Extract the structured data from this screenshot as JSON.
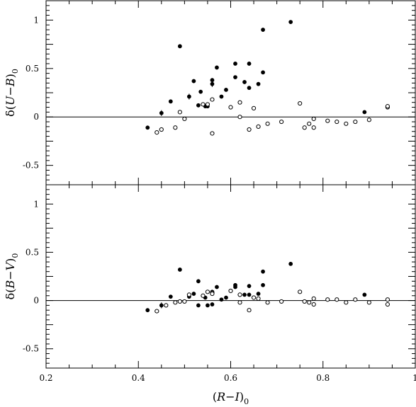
{
  "chart_data": [
    {
      "type": "scatter",
      "panel": "top",
      "ylabel_tspans": [
        "δ(",
        "U",
        "−",
        "B",
        ")",
        "0"
      ],
      "xlabel_tspans": [
        "(",
        "R",
        "−",
        "I",
        ")",
        "0"
      ],
      "xlim": [
        0.2,
        1.0
      ],
      "ylim": [
        -0.7,
        1.2
      ],
      "xticks": [
        0.2,
        0.4,
        0.6,
        0.8,
        1.0
      ],
      "xtick_labels": [
        "0.2",
        "0.4",
        "0.6",
        "0.8",
        "1"
      ],
      "yticks": [
        -0.5,
        0,
        0.5,
        1
      ],
      "ytick_labels": [
        "-0.5",
        "0",
        "0.5",
        "1"
      ],
      "zero_line": 0,
      "series": [
        {
          "marker": "filled-circle",
          "points": [
            [
              0.42,
              -0.11
            ],
            [
              0.45,
              0.04
            ],
            [
              0.47,
              0.16
            ],
            [
              0.49,
              0.73
            ],
            [
              0.51,
              0.21
            ],
            [
              0.52,
              0.37
            ],
            [
              0.53,
              0.12
            ],
            [
              0.535,
              0.26
            ],
            [
              0.545,
              0.11
            ],
            [
              0.55,
              0.11
            ],
            [
              0.56,
              0.38
            ],
            [
              0.56,
              0.34
            ],
            [
              0.57,
              0.51
            ],
            [
              0.58,
              0.21
            ],
            [
              0.59,
              0.28
            ],
            [
              0.61,
              0.55
            ],
            [
              0.61,
              0.41
            ],
            [
              0.63,
              0.36
            ],
            [
              0.64,
              0.55
            ],
            [
              0.64,
              0.3
            ],
            [
              0.66,
              0.34
            ],
            [
              0.67,
              0.46
            ],
            [
              0.67,
              0.9
            ],
            [
              0.73,
              0.98
            ],
            [
              0.89,
              0.05
            ]
          ],
          "errorbars": [
            [
              0.45,
              0.04,
              0.03
            ],
            [
              0.51,
              0.21,
              0.03
            ],
            [
              0.53,
              0.12,
              0.02
            ],
            [
              0.56,
              0.34,
              0.03
            ],
            [
              0.64,
              0.55,
              0.02
            ]
          ]
        },
        {
          "marker": "open-circle",
          "points": [
            [
              0.44,
              -0.16
            ],
            [
              0.45,
              -0.13
            ],
            [
              0.48,
              -0.11
            ],
            [
              0.49,
              0.05
            ],
            [
              0.5,
              -0.02
            ],
            [
              0.54,
              0.13
            ],
            [
              0.55,
              0.13
            ],
            [
              0.56,
              -0.17
            ],
            [
              0.56,
              0.18
            ],
            [
              0.6,
              0.1
            ],
            [
              0.62,
              0.15
            ],
            [
              0.62,
              0.0
            ],
            [
              0.64,
              -0.13
            ],
            [
              0.65,
              0.09
            ],
            [
              0.66,
              -0.1
            ],
            [
              0.68,
              -0.07
            ],
            [
              0.71,
              -0.05
            ],
            [
              0.75,
              0.14
            ],
            [
              0.76,
              -0.11
            ],
            [
              0.77,
              -0.07
            ],
            [
              0.78,
              -0.11
            ],
            [
              0.78,
              -0.02
            ],
            [
              0.81,
              -0.04
            ],
            [
              0.83,
              -0.05
            ],
            [
              0.85,
              -0.07
            ],
            [
              0.87,
              -0.05
            ],
            [
              0.9,
              -0.03
            ],
            [
              0.94,
              0.1
            ],
            [
              0.94,
              0.11
            ]
          ]
        }
      ]
    },
    {
      "type": "scatter",
      "panel": "bottom",
      "ylabel_tspans": [
        "δ(",
        "B",
        "−",
        "V",
        ")",
        "0"
      ],
      "xlabel_tspans": [
        "(",
        "R",
        "−",
        "I",
        ")",
        "0"
      ],
      "xlim": [
        0.2,
        1.0
      ],
      "ylim": [
        -0.7,
        1.2
      ],
      "xticks": [
        0.2,
        0.4,
        0.6,
        0.8,
        1.0
      ],
      "xtick_labels": [
        "0.2",
        "0.4",
        "0.6",
        "0.8",
        "1"
      ],
      "yticks": [
        -0.5,
        0,
        0.5,
        1
      ],
      "ytick_labels": [
        "-0.5",
        "0",
        "0.5",
        "1"
      ],
      "zero_line": 0,
      "series": [
        {
          "marker": "filled-circle",
          "points": [
            [
              0.42,
              -0.1
            ],
            [
              0.45,
              -0.05
            ],
            [
              0.47,
              0.04
            ],
            [
              0.49,
              0.32
            ],
            [
              0.51,
              0.04
            ],
            [
              0.52,
              0.07
            ],
            [
              0.53,
              0.2
            ],
            [
              0.53,
              -0.05
            ],
            [
              0.545,
              0.03
            ],
            [
              0.55,
              -0.05
            ],
            [
              0.56,
              0.09
            ],
            [
              0.56,
              -0.04
            ],
            [
              0.57,
              0.14
            ],
            [
              0.58,
              0.01
            ],
            [
              0.59,
              0.03
            ],
            [
              0.61,
              0.16
            ],
            [
              0.61,
              0.14
            ],
            [
              0.63,
              0.06
            ],
            [
              0.64,
              0.15
            ],
            [
              0.64,
              0.06
            ],
            [
              0.66,
              0.07
            ],
            [
              0.67,
              0.3
            ],
            [
              0.67,
              0.16
            ],
            [
              0.73,
              0.38
            ],
            [
              0.89,
              0.06
            ]
          ],
          "errorbars": [
            [
              0.45,
              -0.05,
              0.03
            ],
            [
              0.51,
              0.04,
              0.02
            ],
            [
              0.56,
              0.09,
              0.02
            ],
            [
              0.64,
              0.15,
              0.02
            ]
          ]
        },
        {
          "marker": "open-circle",
          "points": [
            [
              0.44,
              -0.11
            ],
            [
              0.46,
              -0.05
            ],
            [
              0.48,
              -0.02
            ],
            [
              0.49,
              -0.01
            ],
            [
              0.5,
              -0.01
            ],
            [
              0.51,
              0.06
            ],
            [
              0.54,
              0.05
            ],
            [
              0.55,
              0.09
            ],
            [
              0.56,
              0.08
            ],
            [
              0.56,
              0.07
            ],
            [
              0.6,
              0.1
            ],
            [
              0.62,
              0.06
            ],
            [
              0.62,
              -0.02
            ],
            [
              0.64,
              -0.1
            ],
            [
              0.65,
              0.03
            ],
            [
              0.66,
              0.02
            ],
            [
              0.68,
              -0.02
            ],
            [
              0.71,
              -0.01
            ],
            [
              0.75,
              0.09
            ],
            [
              0.76,
              -0.01
            ],
            [
              0.77,
              -0.02
            ],
            [
              0.78,
              0.02
            ],
            [
              0.78,
              -0.04
            ],
            [
              0.81,
              0.01
            ],
            [
              0.83,
              0.01
            ],
            [
              0.85,
              -0.02
            ],
            [
              0.87,
              0.01
            ],
            [
              0.9,
              -0.02
            ],
            [
              0.94,
              0.01
            ],
            [
              0.94,
              -0.04
            ]
          ]
        }
      ]
    }
  ]
}
